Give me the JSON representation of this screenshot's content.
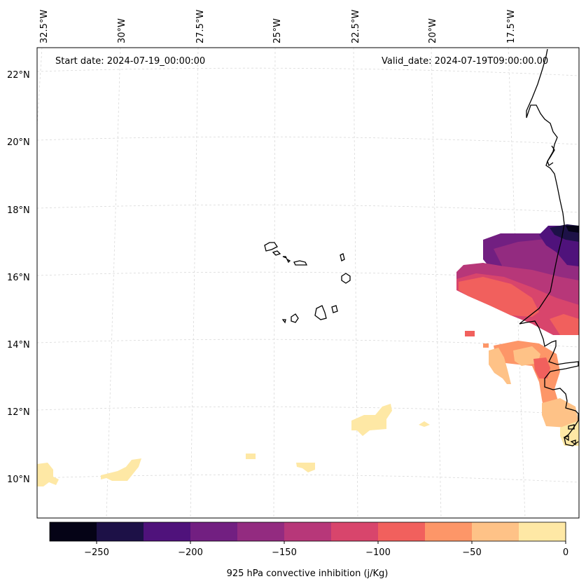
{
  "header": {
    "start_date": "Start date: 2024-07-19_00:00:00",
    "valid_date": "Valid_date: 2024-07-19T09:00:00.00"
  },
  "axes": {
    "lon_labels": [
      "32.5°W",
      "30°W",
      "27.5°W",
      "25°W",
      "22.5°W",
      "20°W",
      "17.5°W"
    ],
    "lat_labels": [
      "22°N",
      "20°N",
      "18°N",
      "16°N",
      "14°N",
      "12°N",
      "10°N"
    ]
  },
  "colorbar": {
    "label": "925 hPa convective inhibition (j/Kg)",
    "tick_labels": [
      "−250",
      "−200",
      "−150",
      "−100",
      "−50",
      "0"
    ],
    "bins": [
      -275,
      -250,
      -225,
      -200,
      -175,
      -150,
      -125,
      -100,
      -75,
      -50,
      -25,
      0
    ],
    "colors": [
      "#050316",
      "#1d1147",
      "#4f127b",
      "#721f81",
      "#932b80",
      "#b73779",
      "#d8456c",
      "#f1605d",
      "#fd9668",
      "#fec287",
      "#fee8a5"
    ]
  },
  "map_style": {
    "coastline_color": "#000000",
    "grid_color": "#d9d9d9"
  }
}
